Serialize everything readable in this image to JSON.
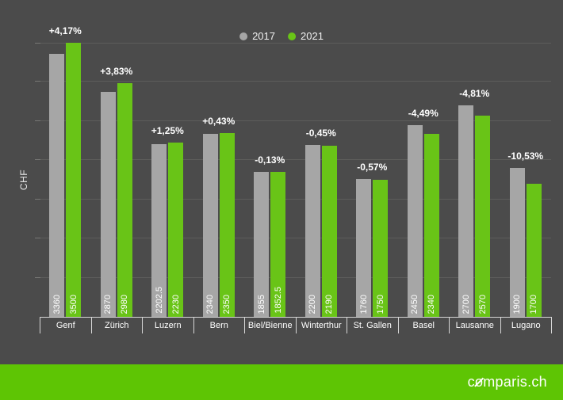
{
  "chart_data": {
    "type": "bar",
    "title": "",
    "ylabel": "CHF",
    "ylim": [
      0,
      3500
    ],
    "gridline_step": 500,
    "grid": true,
    "legend_position": "top-center",
    "categories": [
      "Genf",
      "Zürich",
      "Luzern",
      "Bern",
      "Biel/Bienne",
      "Winterthur",
      "St. Gallen",
      "Basel",
      "Lausanne",
      "Lugano"
    ],
    "series": [
      {
        "name": "2017",
        "color": "#a6a6a6",
        "values": [
          3360,
          2870,
          2202.5,
          2340,
          1855,
          2200,
          1760,
          2450,
          2700,
          1900
        ]
      },
      {
        "name": "2021",
        "color": "#69c417",
        "values": [
          3500,
          2980,
          2230,
          2350,
          1852.5,
          2190,
          1750,
          2340,
          2570,
          1700
        ]
      }
    ],
    "change_labels": [
      "+4,17%",
      "+3,83%",
      "+1,25%",
      "+0,43%",
      "-0,13%",
      "-0,45%",
      "-0,57%",
      "-4,49%",
      "-4,81%",
      "-10,53%"
    ]
  },
  "footer": {
    "logo_prefix": "c",
    "logo_o": "o",
    "logo_suffix": "mparis.ch"
  },
  "colors": {
    "background": "#4b4b4b",
    "gridline": "#5d5d5b",
    "axis": "#d6d6d6",
    "text": "#ffffff",
    "bar_2017": "#a6a6a6",
    "bar_2021": "#69c417",
    "footer_green": "#5ec504"
  }
}
